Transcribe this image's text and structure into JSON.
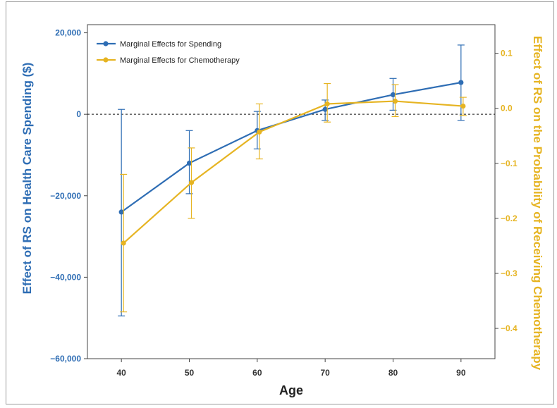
{
  "chart_data": {
    "type": "line",
    "x": [
      40,
      50,
      60,
      70,
      80,
      90
    ],
    "x_ticks": [
      "40",
      "50",
      "60",
      "70",
      "80",
      "90"
    ],
    "xlabel": "Age",
    "xlim": [
      35,
      95
    ],
    "ylabel_left": "Effect of RS on Health Care Spending ($)",
    "ylim_left": [
      -60000,
      22000
    ],
    "yticks_left": [
      {
        "value": 20000,
        "label": "20,000"
      },
      {
        "value": 0,
        "label": "0"
      },
      {
        "value": -20000,
        "label": "−20,000"
      },
      {
        "value": -40000,
        "label": "−40,000"
      },
      {
        "value": -60000,
        "label": "−60,000"
      }
    ],
    "ylabel_right": "Effect of RS on the Probability of Receiving Chemotherapy",
    "ylim_right": [
      -0.455,
      0.152
    ],
    "yticks_right": [
      {
        "value": 0.1,
        "label": "0.1"
      },
      {
        "value": 0.0,
        "label": "0.0"
      },
      {
        "value": -0.1,
        "label": "−0.1"
      },
      {
        "value": -0.2,
        "label": "−0.2"
      },
      {
        "value": -0.3,
        "label": "−0.3"
      },
      {
        "value": -0.4,
        "label": "−0.4"
      }
    ],
    "reference_line": {
      "axis": "left",
      "value": 0,
      "style": "dashed"
    },
    "legend_position": "top-left",
    "series": [
      {
        "name": "Marginal Effects for Spending",
        "axis": "left",
        "color": "#2e6db4",
        "values": [
          -24000,
          -12000,
          -4000,
          1200,
          4800,
          7800
        ],
        "err_low": [
          -49500,
          -19500,
          -8500,
          -1500,
          1000,
          -1500
        ],
        "err_high": [
          1200,
          -4000,
          700,
          3500,
          8800,
          17000
        ]
      },
      {
        "name": "Marginal Effects for Chemotherapy",
        "axis": "right",
        "color": "#e6b422",
        "values": [
          -0.245,
          -0.135,
          -0.043,
          0.008,
          0.013,
          0.004
        ],
        "err_low": [
          -0.37,
          -0.2,
          -0.092,
          -0.025,
          -0.015,
          -0.013
        ],
        "err_high": [
          -0.12,
          -0.072,
          0.008,
          0.045,
          0.043,
          0.02
        ]
      }
    ]
  }
}
